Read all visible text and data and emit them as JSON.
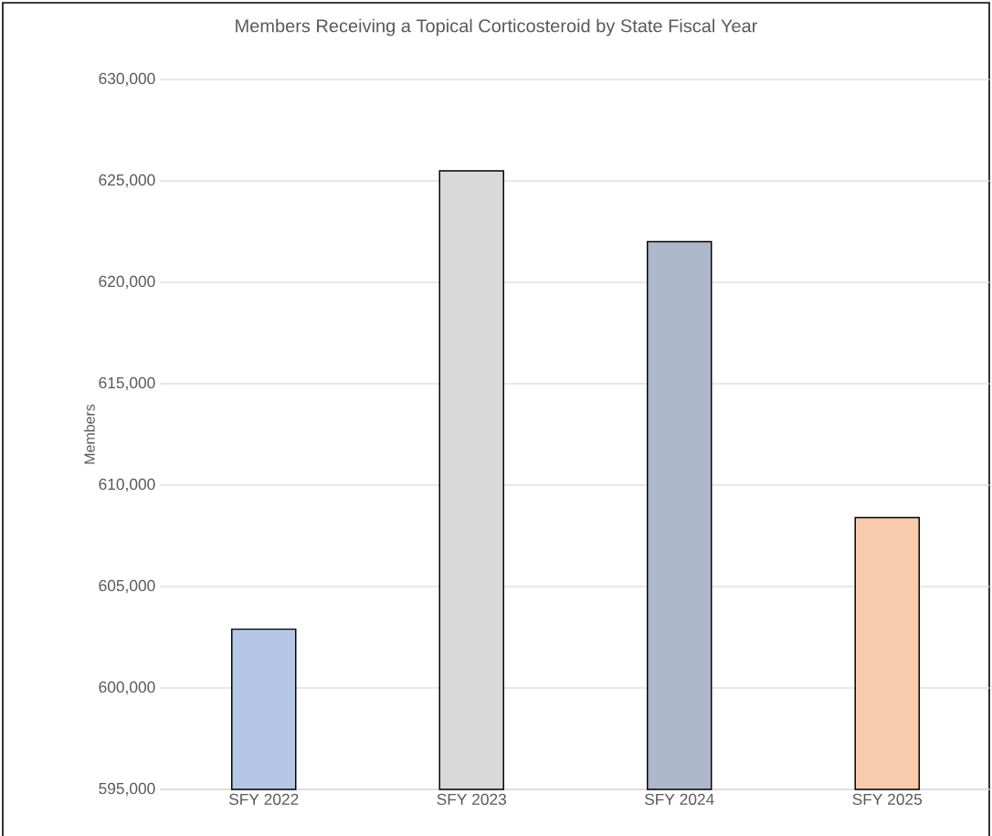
{
  "chart_data": {
    "type": "bar",
    "title": "Members Receiving a Topical Corticosteroid by State Fiscal Year",
    "ylabel": "Members",
    "categories": [
      "SFY 2022",
      "SFY 2023",
      "SFY 2024",
      "SFY 2025"
    ],
    "values": [
      602900,
      625500,
      622000,
      608400
    ],
    "colors": [
      "#b4c7e7",
      "#d9d9d9",
      "#adb9ca",
      "#f8cbad"
    ],
    "ylim": [
      595000,
      630000
    ],
    "yticks": [
      {
        "value": 595000,
        "label": "595,000"
      },
      {
        "value": 600000,
        "label": "600,000"
      },
      {
        "value": 605000,
        "label": "605,000"
      },
      {
        "value": 610000,
        "label": "610,000"
      },
      {
        "value": 615000,
        "label": "615,000"
      },
      {
        "value": 620000,
        "label": "620,000"
      },
      {
        "value": 625000,
        "label": "625,000"
      },
      {
        "value": 630000,
        "label": "630,000"
      }
    ],
    "grid": "y"
  }
}
